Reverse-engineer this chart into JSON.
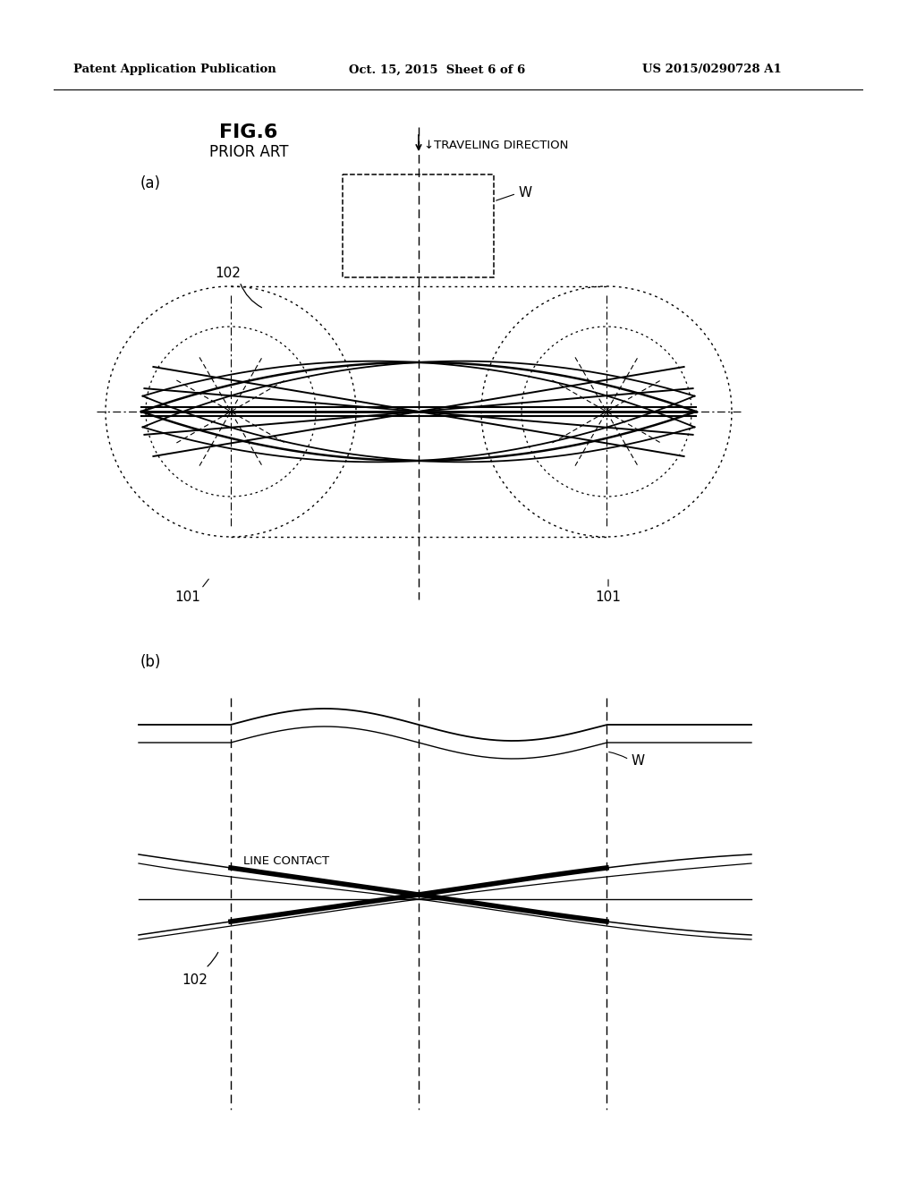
{
  "bg_color": "#ffffff",
  "header_text": "Patent Application Publication",
  "header_date": "Oct. 15, 2015  Sheet 6 of 6",
  "header_patent": "US 2015/0290728 A1",
  "fig_title": "FIG.6",
  "fig_subtitle": "PRIOR ART",
  "label_a": "(a)",
  "label_b": "(b)",
  "traveling_direction": "↓TRAVELING DIRECTION",
  "label_W_a": "W",
  "label_W_b": "W",
  "label_101_left": "101",
  "label_101_right": "101",
  "label_102_a": "102",
  "label_102_b": "102",
  "line_contact": "LINE CONTACT"
}
